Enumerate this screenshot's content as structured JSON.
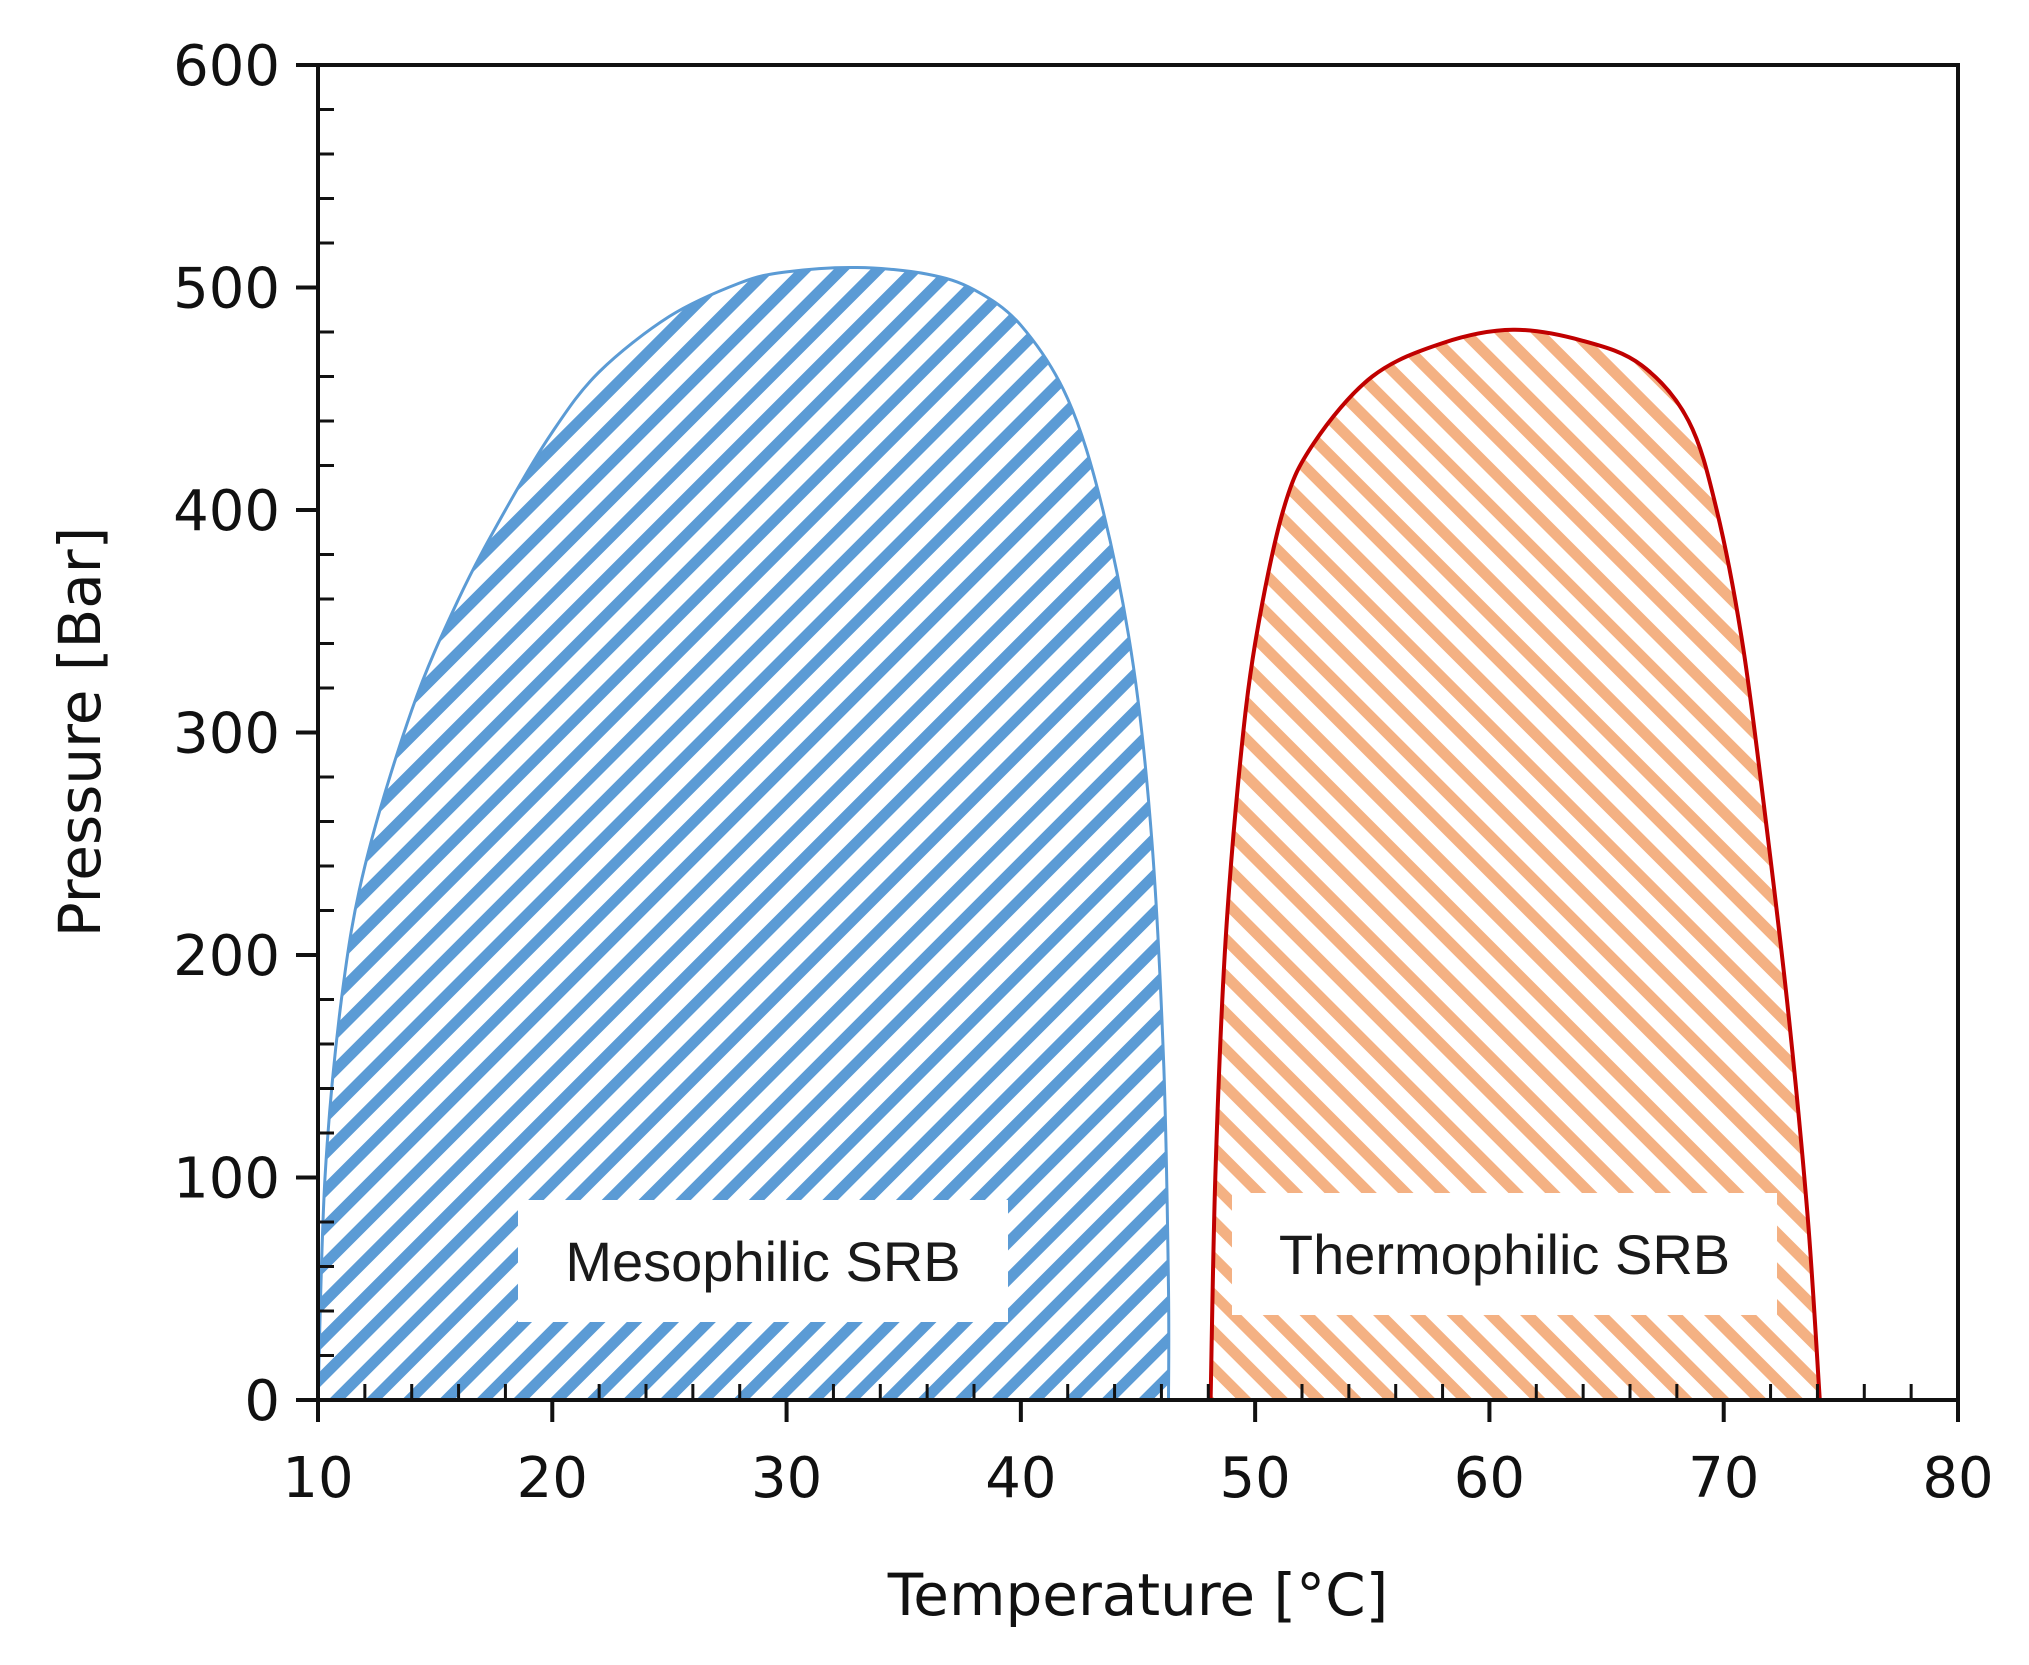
{
  "chart_data": {
    "type": "area",
    "title": "",
    "xlabel": "Temperature  [°C]",
    "ylabel": "Pressure [Bar]",
    "xlim": [
      10,
      80
    ],
    "ylim": [
      0,
      600
    ],
    "x_ticks": [
      10,
      20,
      30,
      40,
      50,
      60,
      70,
      80
    ],
    "y_ticks": [
      0,
      100,
      200,
      300,
      400,
      500,
      600
    ],
    "grid": false,
    "legend": "none",
    "series": [
      {
        "name": "Mesophilic SRB",
        "label": "Mesophilic SRB",
        "color": "#5b9bd5",
        "hatch": "diagonal-forward",
        "points": [
          [
            10,
            0
          ],
          [
            10.3,
            100
          ],
          [
            11,
            180
          ],
          [
            12,
            240
          ],
          [
            14,
            310
          ],
          [
            16,
            360
          ],
          [
            18,
            400
          ],
          [
            20,
            435
          ],
          [
            22,
            462
          ],
          [
            25,
            487
          ],
          [
            28,
            502
          ],
          [
            30,
            507
          ],
          [
            33,
            509
          ],
          [
            36,
            506
          ],
          [
            38,
            499
          ],
          [
            40,
            483
          ],
          [
            42,
            450
          ],
          [
            43.5,
            400
          ],
          [
            44.8,
            330
          ],
          [
            45.6,
            250
          ],
          [
            46.1,
            150
          ],
          [
            46.3,
            50
          ],
          [
            46.3,
            0
          ]
        ]
      },
      {
        "name": "Thermophilic SRB",
        "label": "Thermophilic SRB",
        "color": "#c00000",
        "fill_color": "#f4b183",
        "hatch": "diagonal-backward",
        "points": [
          [
            48.1,
            0
          ],
          [
            48.3,
            100
          ],
          [
            48.7,
            200
          ],
          [
            49.3,
            280
          ],
          [
            50,
            340
          ],
          [
            51.2,
            400
          ],
          [
            52.5,
            430
          ],
          [
            55,
            460
          ],
          [
            58,
            475
          ],
          [
            61,
            481
          ],
          [
            64,
            476
          ],
          [
            66.5,
            465
          ],
          [
            68.5,
            440
          ],
          [
            69.7,
            400
          ],
          [
            70.8,
            340
          ],
          [
            71.8,
            260
          ],
          [
            72.8,
            170
          ],
          [
            73.6,
            80
          ],
          [
            74.1,
            0
          ]
        ]
      }
    ]
  }
}
